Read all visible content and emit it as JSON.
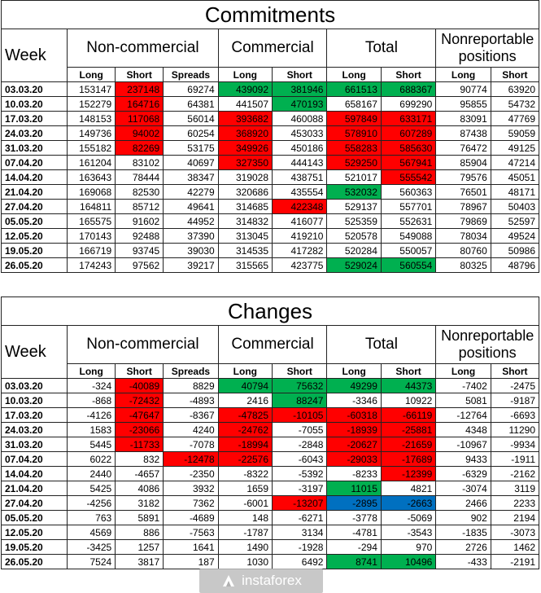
{
  "headers": {
    "week": "Week",
    "noncommercial": "Non-commercial",
    "commercial": "Commercial",
    "total": "Total",
    "nonreportable": "Nonreportable positions",
    "long": "Long",
    "short": "Short",
    "spreads": "Spreads"
  },
  "tables": [
    {
      "title": "Commitments",
      "rows": [
        {
          "week": "03.03.20",
          "cells": [
            [
              "153147",
              ""
            ],
            [
              "237148",
              "red"
            ],
            [
              "69274",
              ""
            ],
            [
              "439092",
              "green"
            ],
            [
              "381946",
              "green"
            ],
            [
              "661513",
              "green"
            ],
            [
              "688367",
              "green"
            ],
            [
              "90774",
              ""
            ],
            [
              "63920",
              ""
            ]
          ]
        },
        {
          "week": "10.03.20",
          "cells": [
            [
              "152279",
              ""
            ],
            [
              "164716",
              "red"
            ],
            [
              "64381",
              ""
            ],
            [
              "441507",
              ""
            ],
            [
              "470193",
              "green"
            ],
            [
              "658167",
              ""
            ],
            [
              "699290",
              ""
            ],
            [
              "95855",
              ""
            ],
            [
              "54732",
              ""
            ]
          ]
        },
        {
          "week": "17.03.20",
          "cells": [
            [
              "148153",
              ""
            ],
            [
              "117068",
              "red"
            ],
            [
              "56014",
              ""
            ],
            [
              "393682",
              "red"
            ],
            [
              "460088",
              ""
            ],
            [
              "597849",
              "red"
            ],
            [
              "633171",
              "red"
            ],
            [
              "83091",
              ""
            ],
            [
              "47769",
              ""
            ]
          ]
        },
        {
          "week": "24.03.20",
          "cells": [
            [
              "149736",
              ""
            ],
            [
              "94002",
              "red"
            ],
            [
              "60254",
              ""
            ],
            [
              "368920",
              "red"
            ],
            [
              "453033",
              ""
            ],
            [
              "578910",
              "red"
            ],
            [
              "607289",
              "red"
            ],
            [
              "87438",
              ""
            ],
            [
              "59059",
              ""
            ]
          ]
        },
        {
          "week": "31.03.20",
          "cells": [
            [
              "155182",
              ""
            ],
            [
              "82269",
              "red"
            ],
            [
              "53175",
              ""
            ],
            [
              "349926",
              "red"
            ],
            [
              "450186",
              ""
            ],
            [
              "558283",
              "red"
            ],
            [
              "585630",
              "red"
            ],
            [
              "76472",
              ""
            ],
            [
              "49125",
              ""
            ]
          ]
        },
        {
          "week": "07.04.20",
          "cells": [
            [
              "161204",
              ""
            ],
            [
              "83102",
              ""
            ],
            [
              "40697",
              ""
            ],
            [
              "327350",
              "red"
            ],
            [
              "444143",
              ""
            ],
            [
              "529250",
              "red"
            ],
            [
              "567941",
              "red"
            ],
            [
              "85904",
              ""
            ],
            [
              "47214",
              ""
            ]
          ]
        },
        {
          "week": "14.04.20",
          "cells": [
            [
              "163643",
              ""
            ],
            [
              "78444",
              ""
            ],
            [
              "38347",
              ""
            ],
            [
              "319028",
              ""
            ],
            [
              "438751",
              ""
            ],
            [
              "521017",
              ""
            ],
            [
              "555542",
              "red"
            ],
            [
              "79576",
              ""
            ],
            [
              "45051",
              ""
            ]
          ]
        },
        {
          "week": "21.04.20",
          "cells": [
            [
              "169068",
              ""
            ],
            [
              "82530",
              ""
            ],
            [
              "42279",
              ""
            ],
            [
              "320686",
              ""
            ],
            [
              "435554",
              ""
            ],
            [
              "532032",
              "green"
            ],
            [
              "560363",
              ""
            ],
            [
              "76501",
              ""
            ],
            [
              "48171",
              ""
            ]
          ]
        },
        {
          "week": "27.04.20",
          "cells": [
            [
              "164811",
              ""
            ],
            [
              "85712",
              ""
            ],
            [
              "49641",
              ""
            ],
            [
              "314685",
              ""
            ],
            [
              "422348",
              "red"
            ],
            [
              "529137",
              ""
            ],
            [
              "557701",
              ""
            ],
            [
              "78967",
              ""
            ],
            [
              "50403",
              ""
            ]
          ]
        },
        {
          "week": "05.05.20",
          "cells": [
            [
              "165575",
              ""
            ],
            [
              "91602",
              ""
            ],
            [
              "44952",
              ""
            ],
            [
              "314832",
              ""
            ],
            [
              "416077",
              ""
            ],
            [
              "525359",
              ""
            ],
            [
              "552631",
              ""
            ],
            [
              "79869",
              ""
            ],
            [
              "52597",
              ""
            ]
          ]
        },
        {
          "week": "12.05.20",
          "cells": [
            [
              "170143",
              ""
            ],
            [
              "92488",
              ""
            ],
            [
              "37390",
              ""
            ],
            [
              "313045",
              ""
            ],
            [
              "419210",
              ""
            ],
            [
              "520578",
              ""
            ],
            [
              "549088",
              ""
            ],
            [
              "78034",
              ""
            ],
            [
              "49524",
              ""
            ]
          ]
        },
        {
          "week": "19.05.20",
          "cells": [
            [
              "166719",
              ""
            ],
            [
              "93745",
              ""
            ],
            [
              "39030",
              ""
            ],
            [
              "314535",
              ""
            ],
            [
              "417282",
              ""
            ],
            [
              "520284",
              ""
            ],
            [
              "550057",
              ""
            ],
            [
              "80760",
              ""
            ],
            [
              "50986",
              ""
            ]
          ]
        },
        {
          "week": "26.05.20",
          "cells": [
            [
              "174243",
              ""
            ],
            [
              "97562",
              ""
            ],
            [
              "39217",
              ""
            ],
            [
              "315565",
              ""
            ],
            [
              "423775",
              ""
            ],
            [
              "529024",
              "green"
            ],
            [
              "560554",
              "green"
            ],
            [
              "80325",
              ""
            ],
            [
              "48796",
              ""
            ]
          ]
        }
      ]
    },
    {
      "title": "Changes",
      "rows": [
        {
          "week": "03.03.20",
          "cells": [
            [
              "-324",
              ""
            ],
            [
              "-40089",
              "red"
            ],
            [
              "8829",
              ""
            ],
            [
              "40794",
              "green"
            ],
            [
              "75632",
              "green"
            ],
            [
              "49299",
              "green"
            ],
            [
              "44373",
              "green"
            ],
            [
              "-7402",
              ""
            ],
            [
              "-2475",
              ""
            ]
          ]
        },
        {
          "week": "10.03.20",
          "cells": [
            [
              "-868",
              ""
            ],
            [
              "-72432",
              "red"
            ],
            [
              "-4893",
              ""
            ],
            [
              "2416",
              ""
            ],
            [
              "88247",
              "green"
            ],
            [
              "-3346",
              ""
            ],
            [
              "10922",
              ""
            ],
            [
              "5081",
              ""
            ],
            [
              "-9187",
              ""
            ]
          ]
        },
        {
          "week": "17.03.20",
          "cells": [
            [
              "-4126",
              ""
            ],
            [
              "-47647",
              "red"
            ],
            [
              "-8367",
              ""
            ],
            [
              "-47825",
              "red"
            ],
            [
              "-10105",
              "red"
            ],
            [
              "-60318",
              "red"
            ],
            [
              "-66119",
              "red"
            ],
            [
              "-12764",
              ""
            ],
            [
              "-6693",
              ""
            ]
          ]
        },
        {
          "week": "24.03.20",
          "cells": [
            [
              "1583",
              ""
            ],
            [
              "-23066",
              "red"
            ],
            [
              "4240",
              ""
            ],
            [
              "-24762",
              "red"
            ],
            [
              "-7055",
              ""
            ],
            [
              "-18939",
              "red"
            ],
            [
              "-25881",
              "red"
            ],
            [
              "4348",
              ""
            ],
            [
              "11290",
              ""
            ]
          ]
        },
        {
          "week": "31.03.20",
          "cells": [
            [
              "5445",
              ""
            ],
            [
              "-11733",
              "red"
            ],
            [
              "-7078",
              ""
            ],
            [
              "-18994",
              "red"
            ],
            [
              "-2848",
              ""
            ],
            [
              "-20627",
              "red"
            ],
            [
              "-21659",
              "red"
            ],
            [
              "-10967",
              ""
            ],
            [
              "-9934",
              ""
            ]
          ]
        },
        {
          "week": "07.04.20",
          "cells": [
            [
              "6022",
              ""
            ],
            [
              "832",
              ""
            ],
            [
              "-12478",
              "red"
            ],
            [
              "-22576",
              "red"
            ],
            [
              "-6043",
              ""
            ],
            [
              "-29033",
              "red"
            ],
            [
              "-17689",
              "red"
            ],
            [
              "9433",
              ""
            ],
            [
              "-1911",
              ""
            ]
          ]
        },
        {
          "week": "14.04.20",
          "cells": [
            [
              "2440",
              ""
            ],
            [
              "-4657",
              ""
            ],
            [
              "-2350",
              ""
            ],
            [
              "-8322",
              ""
            ],
            [
              "-5392",
              ""
            ],
            [
              "-8233",
              ""
            ],
            [
              "-12399",
              "red"
            ],
            [
              "-6329",
              ""
            ],
            [
              "-2162",
              ""
            ]
          ]
        },
        {
          "week": "21.04.20",
          "cells": [
            [
              "5425",
              ""
            ],
            [
              "4086",
              ""
            ],
            [
              "3932",
              ""
            ],
            [
              "1659",
              ""
            ],
            [
              "-3197",
              ""
            ],
            [
              "11015",
              "green"
            ],
            [
              "4821",
              ""
            ],
            [
              "-3074",
              ""
            ],
            [
              "3119",
              ""
            ]
          ]
        },
        {
          "week": "27.04.20",
          "cells": [
            [
              "-4256",
              ""
            ],
            [
              "3182",
              ""
            ],
            [
              "7362",
              ""
            ],
            [
              "-6001",
              ""
            ],
            [
              "-13207",
              "red"
            ],
            [
              "-2895",
              "blue"
            ],
            [
              "-2663",
              "blue"
            ],
            [
              "2466",
              ""
            ],
            [
              "2233",
              ""
            ]
          ]
        },
        {
          "week": "05.05.20",
          "cells": [
            [
              "763",
              ""
            ],
            [
              "5891",
              ""
            ],
            [
              "-4689",
              ""
            ],
            [
              "148",
              ""
            ],
            [
              "-6271",
              ""
            ],
            [
              "-3778",
              ""
            ],
            [
              "-5069",
              ""
            ],
            [
              "902",
              ""
            ],
            [
              "2194",
              ""
            ]
          ]
        },
        {
          "week": "12.05.20",
          "cells": [
            [
              "4569",
              ""
            ],
            [
              "886",
              ""
            ],
            [
              "-7563",
              ""
            ],
            [
              "-1787",
              ""
            ],
            [
              "3134",
              ""
            ],
            [
              "-4781",
              ""
            ],
            [
              "-3543",
              ""
            ],
            [
              "-1835",
              ""
            ],
            [
              "-3073",
              ""
            ]
          ]
        },
        {
          "week": "19.05.20",
          "cells": [
            [
              "-3425",
              ""
            ],
            [
              "1257",
              ""
            ],
            [
              "1641",
              ""
            ],
            [
              "1490",
              ""
            ],
            [
              "-1928",
              ""
            ],
            [
              "-294",
              ""
            ],
            [
              "970",
              ""
            ],
            [
              "2726",
              ""
            ],
            [
              "1462",
              ""
            ]
          ]
        },
        {
          "week": "26.05.20",
          "cells": [
            [
              "7524",
              ""
            ],
            [
              "3817",
              ""
            ],
            [
              "187",
              ""
            ],
            [
              "1030",
              ""
            ],
            [
              "6492",
              ""
            ],
            [
              "8741",
              "green"
            ],
            [
              "10496",
              "green"
            ],
            [
              "-433",
              ""
            ],
            [
              "-2191",
              ""
            ]
          ]
        }
      ]
    }
  ],
  "watermark": {
    "text": "instaforex"
  }
}
